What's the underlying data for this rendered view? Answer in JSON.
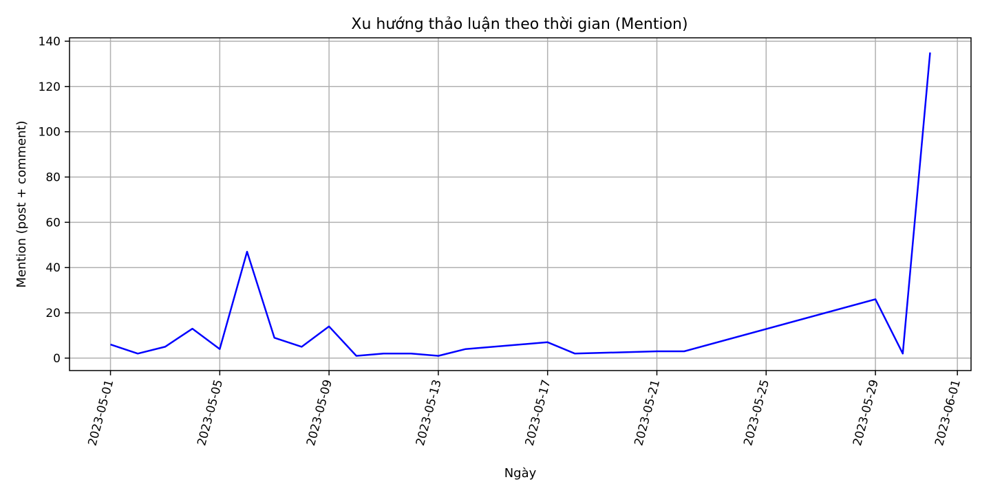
{
  "chart_data": {
    "type": "line",
    "title": "Xu hướng thảo luận theo thời gian (Mention)",
    "xlabel": "Ngày",
    "ylabel": "Mention (post + comment)",
    "xlim": [
      "2023-04-29T12:00",
      "2023-06-01T12:00"
    ],
    "ylim": [
      -5.5,
      141.5
    ],
    "x_ticks": [
      "2023-05-01",
      "2023-05-05",
      "2023-05-09",
      "2023-05-13",
      "2023-05-17",
      "2023-05-21",
      "2023-05-25",
      "2023-05-29",
      "2023-06-01"
    ],
    "y_ticks": [
      0,
      20,
      40,
      60,
      80,
      100,
      120,
      140
    ],
    "grid": true,
    "series": [
      {
        "color": "#0000ff",
        "x": [
          "2023-05-01",
          "2023-05-02",
          "2023-05-03",
          "2023-05-04",
          "2023-05-05",
          "2023-05-06",
          "2023-05-07",
          "2023-05-08",
          "2023-05-09",
          "2023-05-10",
          "2023-05-11",
          "2023-05-12",
          "2023-05-13",
          "2023-05-14",
          "2023-05-17",
          "2023-05-18",
          "2023-05-21",
          "2023-05-22",
          "2023-05-29",
          "2023-05-30",
          "2023-05-31"
        ],
        "values": [
          6,
          2,
          5,
          13,
          4,
          47,
          9,
          5,
          14,
          1,
          2,
          2,
          1,
          4,
          7,
          2,
          3,
          3,
          26,
          2,
          135
        ]
      }
    ]
  }
}
